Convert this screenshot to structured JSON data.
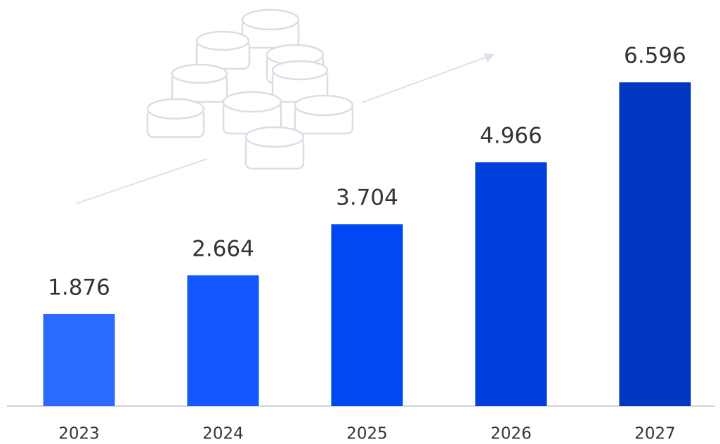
{
  "chart_data": {
    "type": "bar",
    "categories": [
      "2023",
      "2024",
      "2025",
      "2026",
      "2027"
    ],
    "values": [
      1.876,
      2.664,
      3.704,
      4.966,
      6.596
    ],
    "colors": [
      "#2a6aff",
      "#1257ff",
      "#0049f2",
      "#003fdb",
      "#0037c2"
    ],
    "ylim": [
      0,
      7
    ]
  }
}
